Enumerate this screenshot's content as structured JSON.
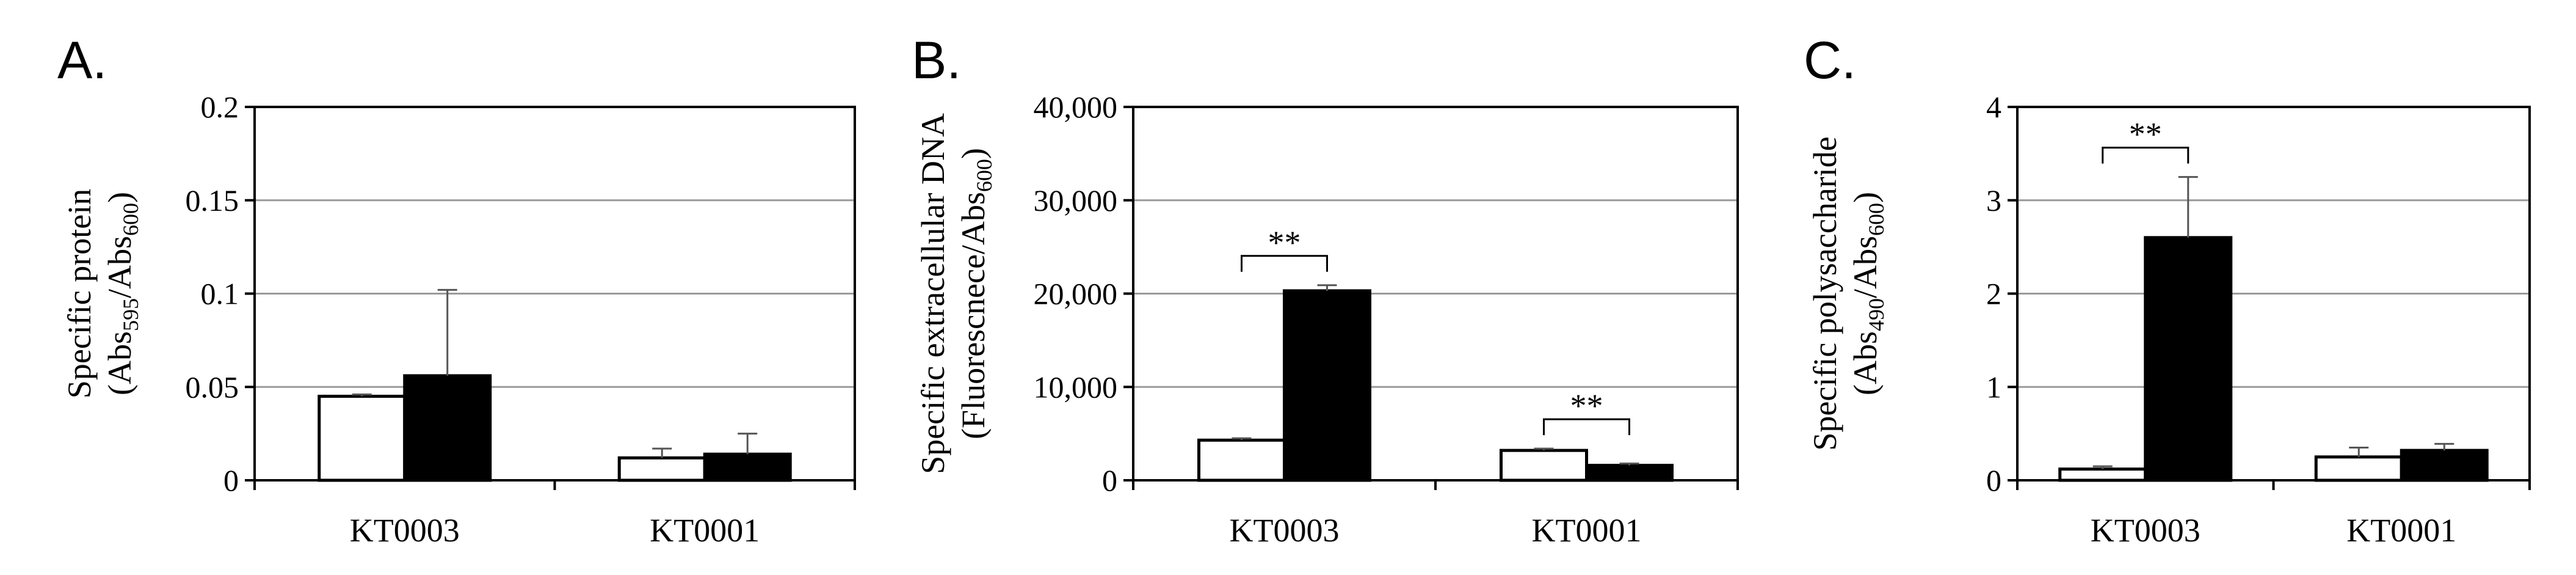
{
  "chart_data": [
    {
      "type": "bar",
      "title": "A.",
      "y_label": [
        "Specific protein",
        [
          "(Abs",
          "595",
          "/Abs",
          "600",
          ")"
        ]
      ],
      "categories": [
        "KT0003",
        "KT0001"
      ],
      "series": [
        {
          "color": "#ffffff",
          "values": [
            0.045,
            0.012
          ],
          "errors": [
            0.001,
            0.005
          ]
        },
        {
          "color": "#000000",
          "values": [
            0.056,
            0.014
          ],
          "errors": [
            0.046,
            0.011
          ]
        }
      ],
      "annotations": [
        null,
        null
      ],
      "ylim": [
        0,
        0.2
      ],
      "yticks": [
        0,
        0.05,
        0.1,
        0.15,
        0.2
      ],
      "grid": true
    },
    {
      "type": "bar",
      "title": "B.",
      "y_label": [
        "Specific extracellular DNA",
        [
          "(Fluorescnece/Abs",
          "600",
          ")"
        ]
      ],
      "categories": [
        "KT0003",
        "KT0001"
      ],
      "series": [
        {
          "color": "#ffffff",
          "values": [
            4300,
            3200
          ],
          "errors": [
            200,
            200
          ]
        },
        {
          "color": "#000000",
          "values": [
            20300,
            1600
          ],
          "errors": [
            600,
            200
          ]
        }
      ],
      "annotations": [
        "**",
        "**"
      ],
      "ylim": [
        0,
        40000
      ],
      "yticks": [
        0,
        {
          "value": 10000,
          "label": "10,000"
        },
        {
          "value": 20000,
          "label": "20,000"
        },
        {
          "value": 30000,
          "label": "30,000"
        },
        {
          "value": 40000,
          "label": "40,000"
        }
      ],
      "grid": true
    },
    {
      "type": "bar",
      "title": "C.",
      "y_label": [
        "Specific polysaccharide",
        [
          "(Abs",
          "490",
          "/Abs",
          "600",
          ")"
        ]
      ],
      "categories": [
        "KT0003",
        "KT0001"
      ],
      "series": [
        {
          "color": "#ffffff",
          "values": [
            0.12,
            0.25
          ],
          "errors": [
            0.03,
            0.1
          ]
        },
        {
          "color": "#000000",
          "values": [
            2.6,
            0.32
          ],
          "errors": [
            0.65,
            0.07
          ]
        }
      ],
      "annotations": [
        "**",
        null
      ],
      "ylim": [
        0,
        4
      ],
      "yticks": [
        0,
        1,
        2,
        3,
        4
      ],
      "grid": true
    }
  ]
}
